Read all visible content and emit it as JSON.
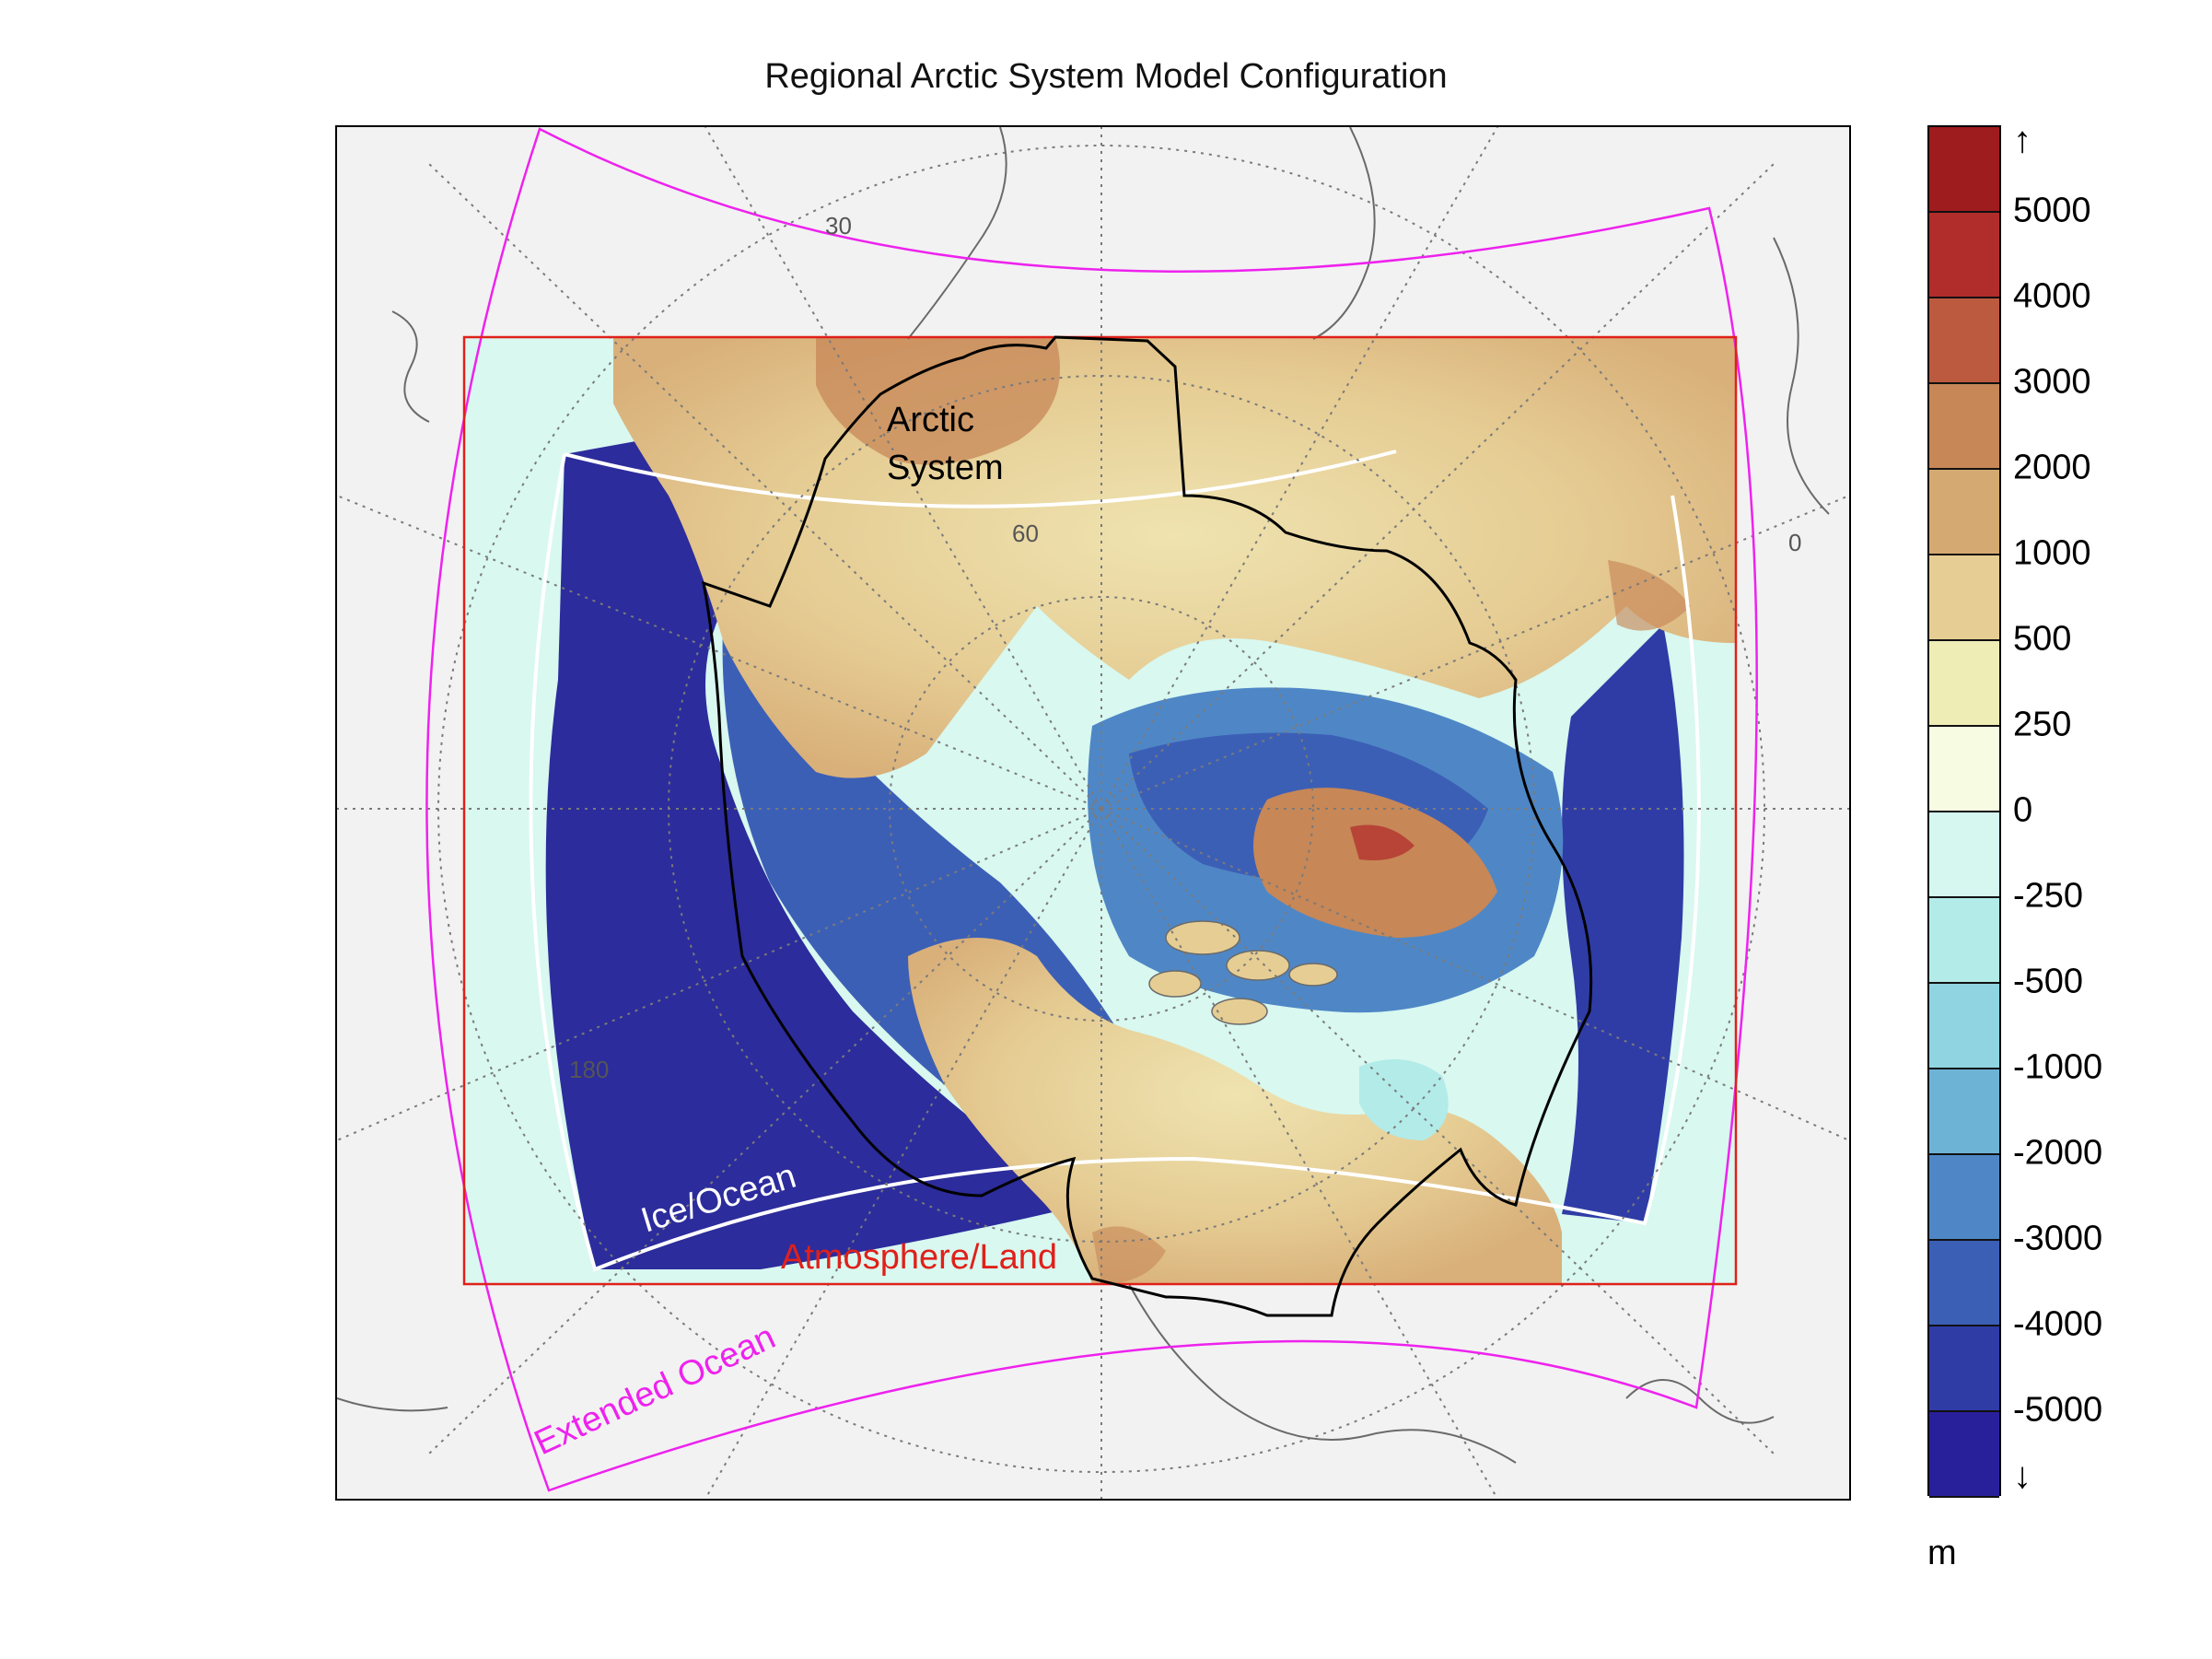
{
  "title": "Regional Arctic System Model Configuration",
  "colors": {
    "land_background": "#f2f2f2",
    "coastline": "#6a6a6a",
    "graticule": "#7a7a7a",
    "atmosphere_land_box": "#e0201a",
    "extended_ocean_box": "#ee22ee",
    "ice_ocean_edge": "#ffffff",
    "arctic_system_outline": "#000000"
  },
  "map": {
    "projection": "polar stereographic (north pole)",
    "graticule_labels": [
      "30",
      "60",
      "180",
      "0"
    ],
    "domains": [
      {
        "name": "Atmosphere/Land",
        "color": "#e0201a"
      },
      {
        "name": "Ice/Ocean",
        "color": "#ffffff"
      },
      {
        "name": "Extended Ocean",
        "color": "#ee22ee"
      },
      {
        "name": "Arctic\nSystem",
        "line1": "Arctic",
        "line2": "System",
        "color": "#000000"
      }
    ],
    "field": "topography / bathymetry"
  },
  "colorbar": {
    "units": "m",
    "top_arrow": "↑",
    "bottom_arrow": "↓",
    "levels": [
      "5000",
      "4000",
      "3000",
      "2000",
      "1000",
      "500",
      "250",
      "0",
      "-250",
      "-500",
      "-1000",
      "-2000",
      "-3000",
      "-4000",
      "-5000"
    ],
    "bins": [
      {
        "color": "#9e1b1e"
      },
      {
        "color": "#b12d2b"
      },
      {
        "color": "#bc5a3f"
      },
      {
        "color": "#c78757"
      },
      {
        "color": "#d5aa72"
      },
      {
        "color": "#e6cd93"
      },
      {
        "color": "#efedb6"
      },
      {
        "color": "#f6fbe2"
      },
      {
        "color": "#d5f7f0"
      },
      {
        "color": "#b2ebe8"
      },
      {
        "color": "#8fd4e0"
      },
      {
        "color": "#6db3d6"
      },
      {
        "color": "#4f87c6"
      },
      {
        "color": "#3c5fb6"
      },
      {
        "color": "#2f3ca6"
      },
      {
        "color": "#28209a"
      }
    ]
  }
}
